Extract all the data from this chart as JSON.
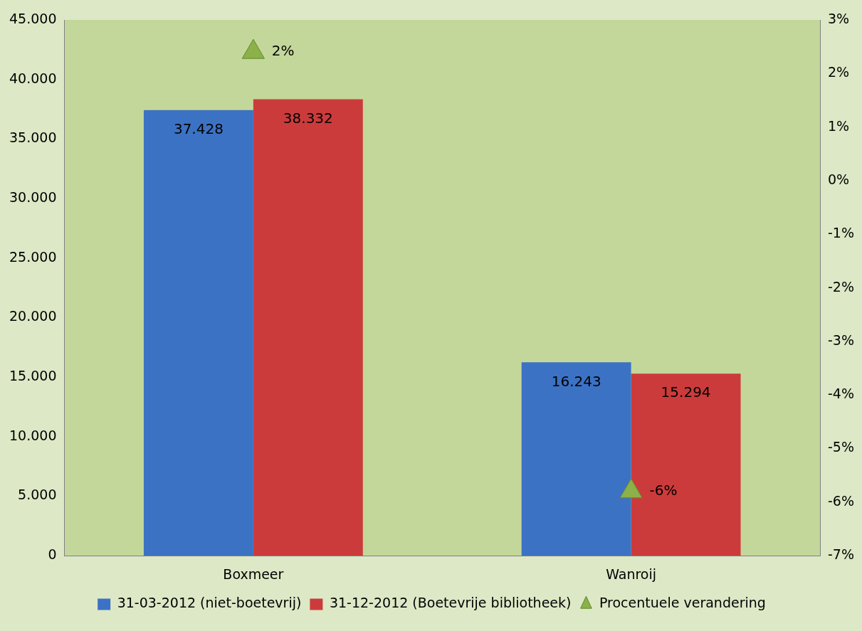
{
  "chart_data": {
    "type": "bar",
    "categories": [
      "Boxmeer",
      "Wanroij"
    ],
    "series": [
      {
        "name": "31-03-2012 (niet-boetevrij)",
        "color": "#3c72c4",
        "values": [
          37428,
          16243
        ],
        "value_labels": [
          "37.428",
          "16.243"
        ]
      },
      {
        "name": "31-12-2012 (Boetevrije bibliotheek)",
        "color": "#cc3b3b",
        "values": [
          38332,
          15294
        ],
        "value_labels": [
          "38.332",
          "15.294"
        ]
      },
      {
        "name": "Procentuele verandering",
        "type": "scatter",
        "axis": "y2",
        "color": "#8cb04a",
        "x": [
          "Boxmeer",
          "Wanroij"
        ],
        "values": [
          2.4,
          -5.8
        ],
        "value_labels": [
          "2%",
          "-6%"
        ]
      }
    ],
    "ylim": [
      0,
      45000
    ],
    "yticks": [
      {
        "value": 0,
        "label": "0"
      },
      {
        "value": 5000,
        "label": "5.000"
      },
      {
        "value": 10000,
        "label": "10.000"
      },
      {
        "value": 15000,
        "label": "15.000"
      },
      {
        "value": 20000,
        "label": "20.000"
      },
      {
        "value": 25000,
        "label": "25.000"
      },
      {
        "value": 30000,
        "label": "30.000"
      },
      {
        "value": 35000,
        "label": "35.000"
      },
      {
        "value": 40000,
        "label": "40.000"
      },
      {
        "value": 45000,
        "label": "45.000"
      }
    ],
    "y2lim": [
      -7,
      3
    ],
    "y2ticks": [
      {
        "value": -7,
        "label": "-7%"
      },
      {
        "value": -6,
        "label": "-6%"
      },
      {
        "value": -5,
        "label": "-5%"
      },
      {
        "value": -4,
        "label": "-4%"
      },
      {
        "value": -3,
        "label": "-3%"
      },
      {
        "value": -2,
        "label": "-2%"
      },
      {
        "value": -1,
        "label": "-1%"
      },
      {
        "value": 0,
        "label": "0%"
      },
      {
        "value": 1,
        "label": "1%"
      },
      {
        "value": 2,
        "label": "2%"
      },
      {
        "value": 3,
        "label": "3%"
      }
    ],
    "marker": "triangle",
    "grid": false,
    "legend": "bottom"
  }
}
